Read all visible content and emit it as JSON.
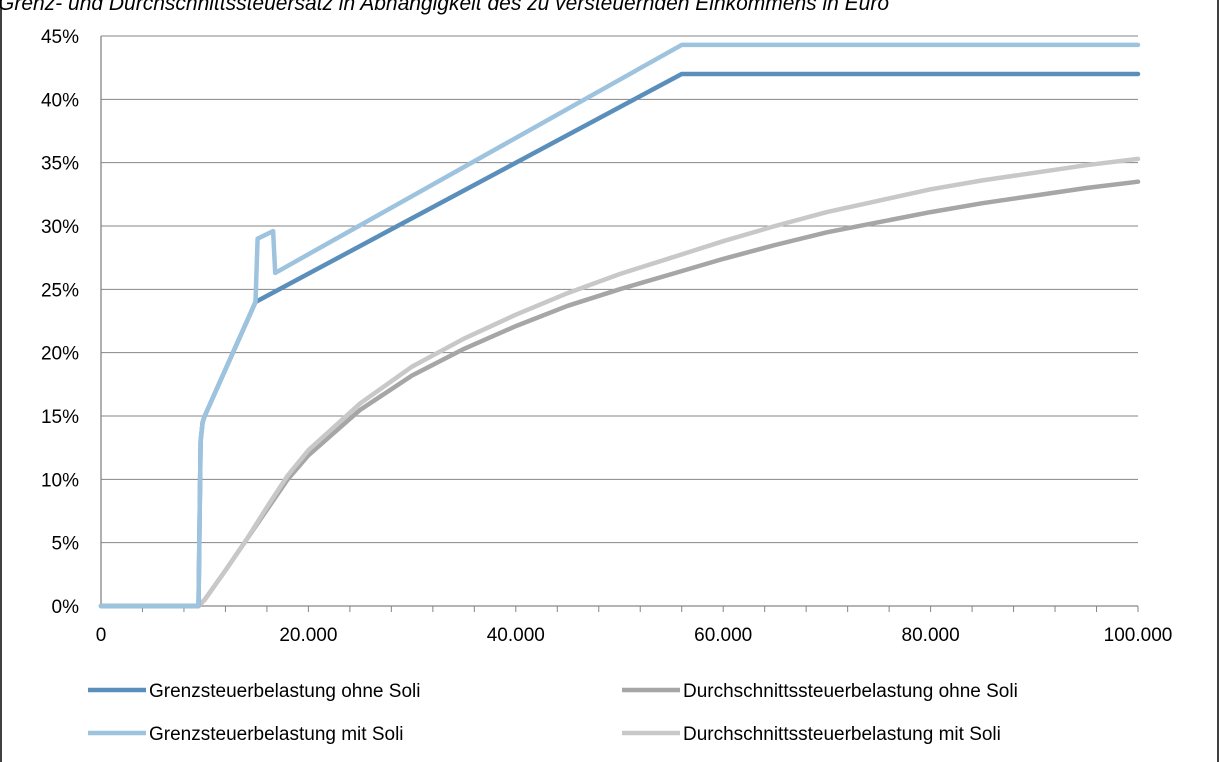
{
  "chart_data": {
    "type": "line",
    "title": "Grenz- und Durchschnittssteuersatz in Abhängigkeit des zu versteuernden Einkommens in Euro",
    "xlabel": "",
    "ylabel": "",
    "xlim": [
      0,
      100000
    ],
    "ylim": [
      0,
      45
    ],
    "x_ticks": [
      0,
      20000,
      40000,
      60000,
      80000,
      100000
    ],
    "x_tick_labels": [
      "0",
      "20.000",
      "40.000",
      "60.000",
      "80.000",
      "100.000"
    ],
    "y_ticks": [
      0,
      5,
      10,
      15,
      20,
      25,
      30,
      35,
      40,
      45
    ],
    "y_tick_labels": [
      "0%",
      "5%",
      "10%",
      "15%",
      "20%",
      "25%",
      "30%",
      "35%",
      "40%",
      "45%"
    ],
    "grid": "horizontal",
    "legend_position": "bottom",
    "series": [
      {
        "name": "Grenzsteuerbelastung ohne Soli",
        "color": "#5b8fbb",
        "x": [
          0,
          9400,
          9600,
          9800,
          10000,
          14900,
          56000,
          100000
        ],
        "values": [
          0,
          0,
          13,
          14.5,
          15,
          24,
          42,
          42
        ]
      },
      {
        "name": "Grenzsteuerbelastung mit Soli",
        "color": "#9ec3df",
        "x": [
          0,
          9400,
          9600,
          9800,
          10000,
          14900,
          15100,
          16600,
          16800,
          56000,
          100000
        ],
        "values": [
          0,
          0,
          13,
          14.5,
          15,
          24,
          29,
          29.6,
          26.3,
          44.3,
          44.3
        ]
      },
      {
        "name": "Durchschnittssteuerbelastung ohne Soli",
        "color": "#a6a6a6",
        "x": [
          0,
          9400,
          10000,
          12000,
          14000,
          16000,
          18000,
          20000,
          25000,
          30000,
          35000,
          40000,
          45000,
          50000,
          55000,
          60000,
          65000,
          70000,
          75000,
          80000,
          85000,
          90000,
          95000,
          100000
        ],
        "values": [
          0,
          0,
          0.5,
          2.8,
          5.2,
          7.6,
          10.0,
          11.9,
          15.5,
          18.2,
          20.3,
          22.1,
          23.7,
          25.0,
          26.2,
          27.4,
          28.5,
          29.5,
          30.3,
          31.1,
          31.8,
          32.4,
          33.0,
          33.5
        ]
      },
      {
        "name": "Durchschnittssteuerbelastung mit Soli",
        "color": "#c8c8c8",
        "x": [
          0,
          9400,
          10000,
          12000,
          14000,
          16000,
          18000,
          20000,
          25000,
          30000,
          35000,
          40000,
          45000,
          50000,
          55000,
          60000,
          65000,
          70000,
          75000,
          80000,
          85000,
          90000,
          95000,
          100000
        ],
        "values": [
          0,
          0,
          0.5,
          2.8,
          5.2,
          7.8,
          10.3,
          12.3,
          16.0,
          18.9,
          21.1,
          23.0,
          24.7,
          26.2,
          27.5,
          28.8,
          30.0,
          31.1,
          32.0,
          32.9,
          33.6,
          34.2,
          34.8,
          35.3
        ]
      }
    ]
  }
}
